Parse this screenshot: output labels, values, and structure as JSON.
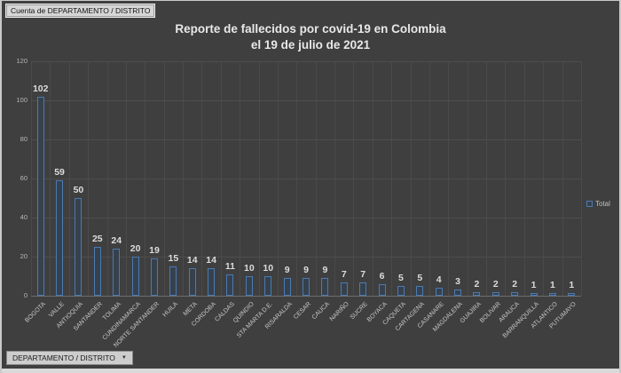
{
  "window": {
    "pivot_label": "Cuenta de DEPARTAMENTO / DISTRITO",
    "filter_button": "DEPARTAMENTO / DISTRITO",
    "filter_dropdown_arrow": "▼"
  },
  "colors": {
    "background": "#3f3f3f",
    "bar_border": "#4a7ab2",
    "bar_fill": "#36414d",
    "gridline": "#4e4e4e",
    "text_light": "#dcdcdc"
  },
  "chart_data": {
    "type": "bar",
    "title": "Reporte de fallecidos por covid-19 en Colombia",
    "subtitle": "el 19 de julio de 2021",
    "xlabel": "",
    "ylabel": "",
    "ylim": [
      0,
      120
    ],
    "yticks": [
      0,
      20,
      40,
      60,
      80,
      100,
      120
    ],
    "grid": true,
    "legend_position": "right",
    "categories": [
      "BOGOTA",
      "VALLE",
      "ANTIOQUIA",
      "SANTANDER",
      "TOLIMA",
      "CUNDINAMARCA",
      "NORTE SANTANDER",
      "HUILA",
      "META",
      "CORDOBA",
      "CALDAS",
      "QUINDIO",
      "STA MARTA D.E.",
      "RISARALDA",
      "CESAR",
      "CAUCA",
      "NARIÑO",
      "SUCRE",
      "BOYACA",
      "CAQUETA",
      "CARTAGENA",
      "CASANARE",
      "MAGDALENA",
      "GUAJIRA",
      "BOLIVAR",
      "ARAUCA",
      "BARRANQUILLA",
      "ATLANTICO",
      "PUTUMAYO"
    ],
    "series": [
      {
        "name": "Total",
        "values": [
          102,
          59,
          50,
          25,
          24,
          20,
          19,
          15,
          14,
          14,
          11,
          10,
          10,
          9,
          9,
          9,
          7,
          7,
          6,
          5,
          5,
          4,
          3,
          2,
          2,
          2,
          1,
          1,
          1
        ]
      }
    ]
  }
}
